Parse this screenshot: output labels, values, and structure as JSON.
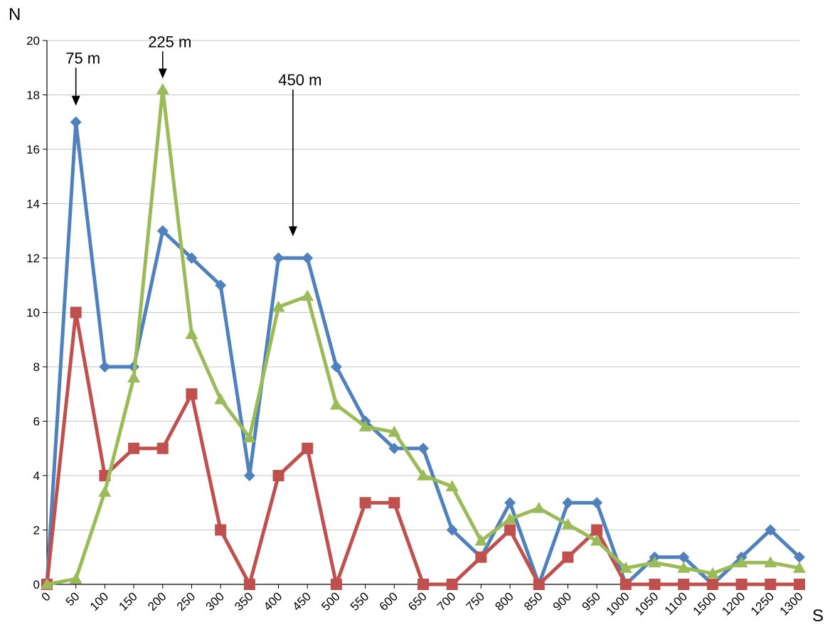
{
  "chart_data": {
    "type": "line",
    "xlabel": "S",
    "ylabel": "N",
    "ylim": [
      0,
      20
    ],
    "yticks": [
      "0",
      "2",
      "4",
      "6",
      "8",
      "10",
      "12",
      "14",
      "16",
      "18",
      "20"
    ],
    "grid": "horizontal",
    "categories": [
      "0",
      "50",
      "100",
      "150",
      "200",
      "250",
      "300",
      "350",
      "400",
      "450",
      "500",
      "550",
      "600",
      "650",
      "700",
      "750",
      "800",
      "850",
      "900",
      "950",
      "1000",
      "1050",
      "1100",
      "1500",
      "1200",
      "1250",
      "1300"
    ],
    "series": [
      {
        "color": "#4f81bd",
        "marker": "diamond",
        "values": [
          0,
          17,
          8,
          8,
          13,
          12,
          11,
          4,
          12,
          12,
          8,
          6,
          5,
          5,
          2,
          1,
          3,
          0,
          3,
          3,
          0,
          1,
          1,
          0,
          1,
          2,
          1
        ]
      },
      {
        "color": "#c0504d",
        "marker": "square",
        "values": [
          0,
          10,
          4,
          5,
          5,
          7,
          2,
          0,
          4,
          5,
          0,
          3,
          3,
          0,
          0,
          1,
          2,
          0,
          1,
          2,
          0,
          0,
          0,
          0,
          0,
          0,
          0
        ]
      },
      {
        "color": "#9bbb59",
        "marker": "triangle",
        "values": [
          0,
          0.2,
          3.4,
          7.6,
          18.2,
          9.2,
          6.8,
          5.4,
          10.2,
          10.6,
          6.6,
          5.8,
          5.6,
          4,
          3.6,
          1.6,
          2.4,
          2.8,
          2.2,
          1.6,
          0.6,
          0.8,
          0.6,
          0.4,
          0.8,
          0.8,
          0.6
        ]
      }
    ],
    "annotations": [
      {
        "text": "75 m",
        "category_index": 1,
        "arrow_from": 19,
        "arrow_to": 17.6
      },
      {
        "text": "225 m",
        "category_index": 4,
        "arrow_from": 19.6,
        "arrow_to": 18.6
      },
      {
        "text": "450 m",
        "category_index": 8.5,
        "arrow_from": 18.2,
        "arrow_to": 12.8
      }
    ]
  }
}
